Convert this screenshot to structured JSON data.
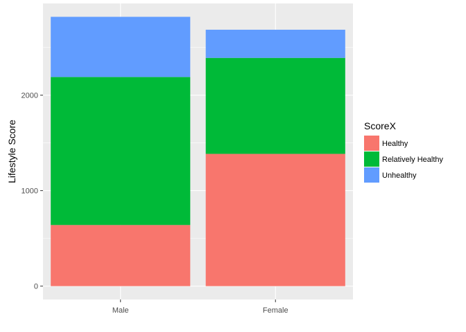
{
  "chart_data": {
    "type": "bar",
    "stacked": true,
    "categories": [
      "Male",
      "Female"
    ],
    "series": [
      {
        "name": "Healthy",
        "values": [
          640,
          1385
        ],
        "color": "#F8766D"
      },
      {
        "name": "Relatively Healthy",
        "values": [
          1550,
          1005
        ],
        "color": "#00BA38"
      },
      {
        "name": "Unhealthy",
        "values": [
          630,
          295
        ],
        "color": "#619CFF"
      }
    ],
    "ylabel": "Lifestyle Score",
    "xlabel": "",
    "ylim": [
      -140,
      2960
    ],
    "yticks": [
      0,
      1000,
      2000
    ],
    "ytick_labels": [
      "0",
      "1000",
      "2000"
    ],
    "grid": true,
    "legend": {
      "title": "ScoreX",
      "position": "right"
    },
    "colors": {
      "panel": "#EBEBEB",
      "grid": "#FFFFFF"
    }
  }
}
